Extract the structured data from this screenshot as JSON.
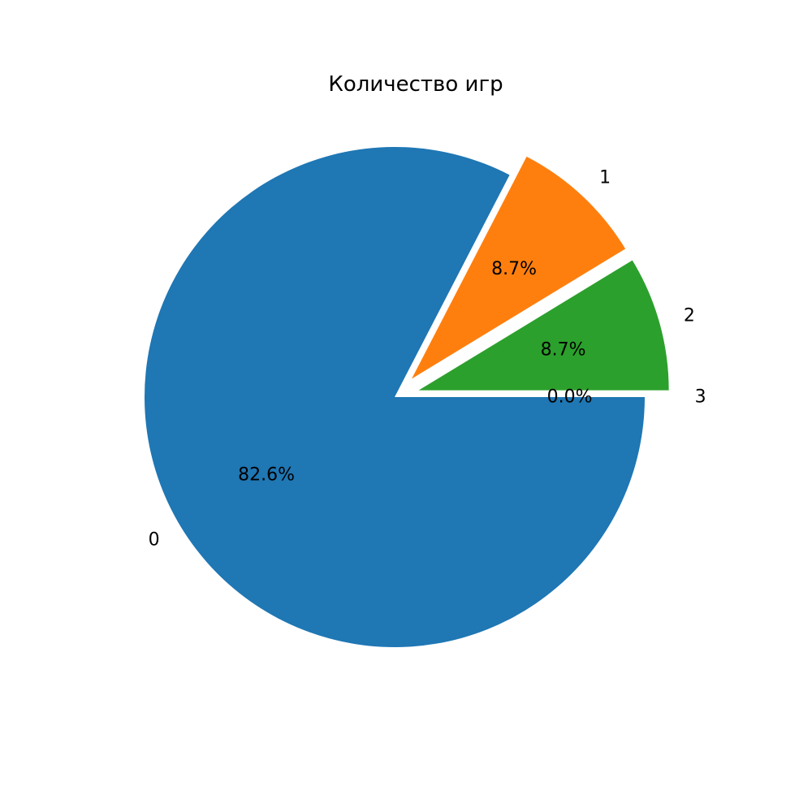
{
  "chart_data": {
    "type": "pie",
    "title": "Количество игр",
    "categories": [
      "0",
      "1",
      "2",
      "3"
    ],
    "values": [
      82.6,
      8.7,
      8.7,
      0.0
    ],
    "value_labels": [
      "82.6%",
      "8.7%",
      "8.7%",
      "0.0%"
    ],
    "colors": [
      "#1f77b4",
      "#ff7f0e",
      "#2ca02c",
      "#d62728"
    ],
    "exploded": [
      false,
      true,
      true,
      true
    ],
    "start_direction": "east",
    "direction": "clockwise",
    "legend": "none"
  }
}
